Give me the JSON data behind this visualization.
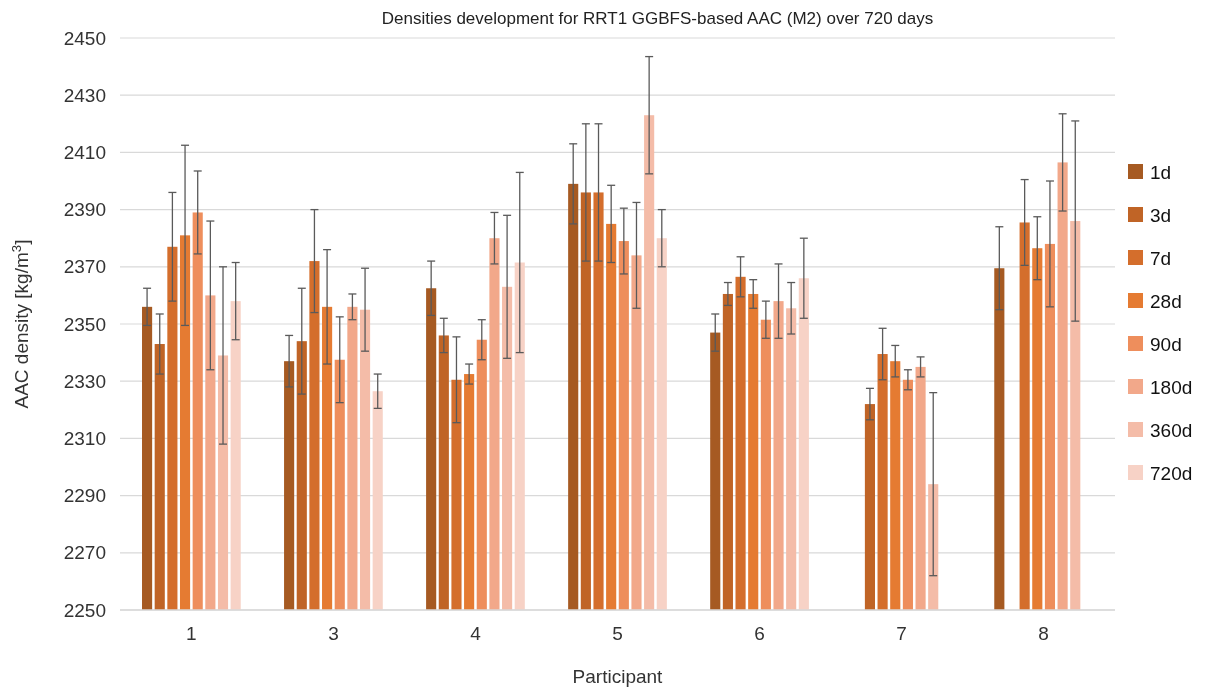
{
  "chart_data": {
    "type": "bar",
    "title": "Densities development for RRT1 GGBFS-based AAC (M2) over 720 days",
    "xlabel": "Participant",
    "ylabel": "AAC density [kg/m$^{3}$]",
    "categories": [
      "1",
      "3",
      "4",
      "5",
      "6",
      "7",
      "8"
    ],
    "series": [
      {
        "name": "1d",
        "color": "#a65a22",
        "values": [
          2356,
          2337,
          2362.5,
          2399,
          2347,
          null,
          2369.5
        ],
        "errors": [
          6.5,
          9,
          9.5,
          14,
          6.5,
          null,
          14.5
        ]
      },
      {
        "name": "3d",
        "color": "#c06426",
        "values": [
          2343,
          2344,
          2346,
          2396,
          2360.5,
          2322,
          null
        ],
        "errors": [
          10.5,
          18.5,
          6,
          24,
          4,
          5.5,
          null
        ]
      },
      {
        "name": "7d",
        "color": "#d46e2c",
        "values": [
          2377,
          2372,
          2330.5,
          2396,
          2366.5,
          2339.5,
          2385.5
        ],
        "errors": [
          19,
          18,
          15,
          24,
          7,
          9,
          15
        ]
      },
      {
        "name": "28d",
        "color": "#e57b32",
        "values": [
          2381,
          2356,
          2332.5,
          2385,
          2360.5,
          2337,
          2376.5
        ],
        "errors": [
          31.5,
          20,
          3.5,
          13.5,
          5,
          5.5,
          11
        ]
      },
      {
        "name": "90d",
        "color": "#ee8e5c",
        "values": [
          2389,
          2337.5,
          2344.5,
          2379,
          2351.5,
          2330.5,
          2378
        ],
        "errors": [
          14.5,
          15,
          7,
          11.5,
          6.5,
          3.5,
          22
        ]
      },
      {
        "name": "180d",
        "color": "#f2a88a",
        "values": [
          2360,
          2356,
          2380,
          2374,
          2358,
          2335,
          2406.5
        ],
        "errors": [
          26,
          4.5,
          9,
          18.5,
          13,
          3.5,
          17
        ]
      },
      {
        "name": "360d",
        "color": "#f4bca8",
        "values": [
          2339,
          2355,
          2363,
          2423,
          2355.5,
          2294,
          2386
        ],
        "errors": [
          31,
          14.5,
          25,
          20.5,
          9,
          32,
          35
        ]
      },
      {
        "name": "720d",
        "color": "#f7d2c6",
        "values": [
          2358,
          2326.5,
          2371.5,
          2380,
          2366,
          null,
          null
        ],
        "errors": [
          13.5,
          6,
          31.5,
          10,
          14,
          null,
          null
        ]
      }
    ],
    "ylim": [
      2250,
      2450
    ],
    "yticks": [
      2250,
      2270,
      2290,
      2310,
      2330,
      2350,
      2370,
      2390,
      2410,
      2430,
      2450
    ],
    "grid": "y",
    "legend": "right"
  }
}
